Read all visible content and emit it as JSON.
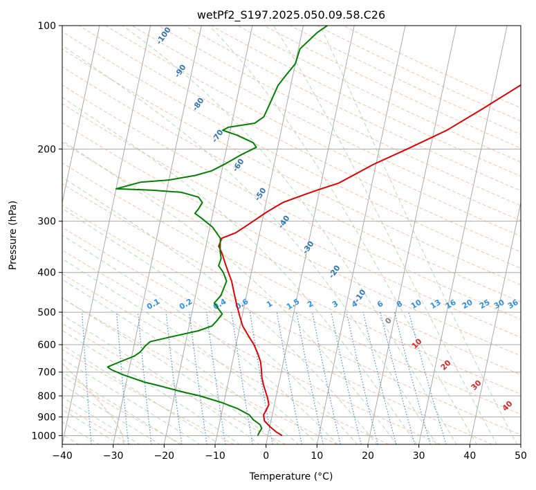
{
  "chart_data": {
    "type": "line",
    "title": "wetPf2_S197.2025.050.09.58.C26",
    "xlabel": "Temperature (°C)",
    "ylabel": "Pressure (hPa)",
    "xlim": [
      -40,
      50
    ],
    "ylim": [
      1050,
      100
    ],
    "y_scale": "log",
    "grid": true,
    "x_ticks": [
      -40,
      -30,
      -20,
      -10,
      0,
      10,
      20,
      30,
      40,
      50
    ],
    "x_tick_labels": [
      "−40",
      "−30",
      "−20",
      "−10",
      "0",
      "10",
      "20",
      "30",
      "40",
      "50"
    ],
    "y_ticks": [
      100,
      200,
      300,
      400,
      500,
      600,
      700,
      800,
      900,
      1000
    ],
    "y_tick_labels": [
      "100",
      "200",
      "300",
      "400",
      "500",
      "600",
      "700",
      "800",
      "900",
      "1000"
    ],
    "series": [
      {
        "color": "#e00000",
        "points": [
          [
            2.8,
            1000
          ],
          [
            1.5,
            980
          ],
          [
            0,
            950
          ],
          [
            -1.3,
            920
          ],
          [
            -1.7,
            890
          ],
          [
            -1.3,
            860
          ],
          [
            -1.1,
            840
          ],
          [
            -1.6,
            810
          ],
          [
            -2.3,
            780
          ],
          [
            -3.0,
            750
          ],
          [
            -3.6,
            720
          ],
          [
            -4.0,
            690
          ],
          [
            -4.5,
            660
          ],
          [
            -5.4,
            630
          ],
          [
            -6.5,
            600
          ],
          [
            -8.0,
            570
          ],
          [
            -9.5,
            540
          ],
          [
            -10.5,
            510
          ],
          [
            -11.5,
            480
          ],
          [
            -12.5,
            450
          ],
          [
            -13.5,
            420
          ],
          [
            -14.5,
            400
          ],
          [
            -15.5,
            380
          ],
          [
            -16.5,
            360
          ],
          [
            -17.5,
            345
          ],
          [
            -17.2,
            330
          ],
          [
            -14.7,
            320
          ],
          [
            -12.5,
            305
          ],
          [
            -9.5,
            285
          ],
          [
            -6.7,
            270
          ],
          [
            -2.7,
            258
          ],
          [
            -0.5,
            252
          ],
          [
            3.5,
            242
          ],
          [
            9.5,
            218
          ],
          [
            15.5,
            200
          ],
          [
            22.5,
            180
          ],
          [
            28.5,
            160
          ],
          [
            35.0,
            140
          ],
          [
            40.0,
            125
          ],
          [
            43.5,
            113
          ],
          [
            45.6,
            102
          ]
        ]
      },
      {
        "color": "#008000",
        "points": [
          [
            -2.0,
            1000
          ],
          [
            -1.8,
            980
          ],
          [
            -1.5,
            960
          ],
          [
            -2.0,
            940
          ],
          [
            -3.5,
            915
          ],
          [
            -4.5,
            890
          ],
          [
            -7.0,
            860
          ],
          [
            -10.5,
            830
          ],
          [
            -15.0,
            800
          ],
          [
            -19.0,
            780
          ],
          [
            -23.5,
            755
          ],
          [
            -26.5,
            740
          ],
          [
            -31.0,
            710
          ],
          [
            -33.5,
            690
          ],
          [
            -34.3,
            680
          ],
          [
            -32.0,
            660
          ],
          [
            -29.5,
            640
          ],
          [
            -28.5,
            625
          ],
          [
            -27.8,
            605
          ],
          [
            -27.0,
            590
          ],
          [
            -22.0,
            570
          ],
          [
            -18.0,
            555
          ],
          [
            -15.5,
            540
          ],
          [
            -14.8,
            525
          ],
          [
            -14.0,
            505
          ],
          [
            -15.0,
            490
          ],
          [
            -16.0,
            475
          ],
          [
            -15.0,
            455
          ],
          [
            -14.5,
            420
          ],
          [
            -15.5,
            400
          ],
          [
            -16.7,
            385
          ],
          [
            -16.5,
            370
          ],
          [
            -17.0,
            355
          ],
          [
            -17.5,
            330
          ],
          [
            -19.5,
            310
          ],
          [
            -22.0,
            295
          ],
          [
            -23.5,
            287
          ],
          [
            -23.0,
            280
          ],
          [
            -22.5,
            270
          ],
          [
            -23.5,
            262
          ],
          [
            -27.0,
            255
          ],
          [
            -33.0,
            252
          ],
          [
            -40.0,
            250
          ],
          [
            -35.5,
            241
          ],
          [
            -30.0,
            238
          ],
          [
            -25.0,
            232
          ],
          [
            -22.0,
            226
          ],
          [
            -19.5,
            217
          ],
          [
            -17.0,
            207
          ],
          [
            -14.2,
            198
          ],
          [
            -15.0,
            193
          ],
          [
            -18.5,
            185
          ],
          [
            -21.5,
            180
          ],
          [
            -20.5,
            177
          ],
          [
            -15.5,
            173
          ],
          [
            -14.0,
            167
          ],
          [
            -13.5,
            158
          ],
          [
            -12.5,
            140
          ],
          [
            -11.5,
            133
          ],
          [
            -10.0,
            124
          ],
          [
            -9.7,
            114
          ],
          [
            -7.0,
            104
          ],
          [
            -5.3,
            100
          ]
        ]
      }
    ],
    "dry_adiabat_labels": [
      "-100",
      "-90",
      "-80",
      "-70",
      "-60",
      "-50",
      "-40",
      "-30",
      "-20",
      "-10"
    ],
    "mixing_ratio_labels": [
      "0.1",
      "0.2",
      "0.4",
      "0.6",
      "1",
      "1.5",
      "2",
      "3",
      "4",
      "6",
      "8",
      "10",
      "13",
      "16",
      "20",
      "25",
      "30",
      "36"
    ],
    "moist_adiabat_labels": [
      "0",
      "10",
      "20",
      "30",
      "40"
    ],
    "colors": {
      "isotherm": "#a9a9a9",
      "isobar": "#a9a9a9",
      "dry_adiabat": "#f4a582",
      "moist_adiabat": "#9ccc9c",
      "mixing_ratio": "#3a8fe0",
      "dry_label": "#2f75b5",
      "mix_label": "#2f8fe0",
      "moist_label": "#d62728",
      "moist_label_zero": "#7f7f7f",
      "lcl_curve": "#d9b38c"
    }
  }
}
